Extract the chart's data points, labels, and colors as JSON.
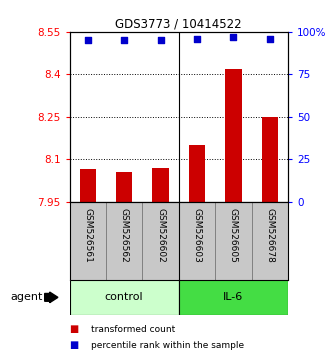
{
  "title": "GDS3773 / 10414522",
  "samples": [
    "GSM526561",
    "GSM526562",
    "GSM526602",
    "GSM526603",
    "GSM526605",
    "GSM526678"
  ],
  "bar_values": [
    8.065,
    8.055,
    8.07,
    8.15,
    8.42,
    8.25
  ],
  "bar_baseline": 7.95,
  "percentile_values": [
    95,
    95,
    95,
    96,
    97,
    96
  ],
  "ylim_left": [
    7.95,
    8.55
  ],
  "ylim_right": [
    0,
    100
  ],
  "yticks_left": [
    7.95,
    8.1,
    8.25,
    8.4,
    8.55
  ],
  "yticks_right": [
    0,
    25,
    50,
    75,
    100
  ],
  "ytick_labels_left": [
    "7.95",
    "8.1",
    "8.25",
    "8.4",
    "8.55"
  ],
  "ytick_labels_right": [
    "0",
    "25",
    "50",
    "75",
    "100%"
  ],
  "bar_color": "#cc0000",
  "dot_color": "#0000cc",
  "agent_label": "agent",
  "legend_bar_label": "transformed count",
  "legend_dot_label": "percentile rank within the sample",
  "bg_color": "#ffffff",
  "plot_bg_color": "#ffffff",
  "tick_area_color": "#c8c8c8",
  "control_color": "#ccffcc",
  "il6_color": "#44dd44"
}
